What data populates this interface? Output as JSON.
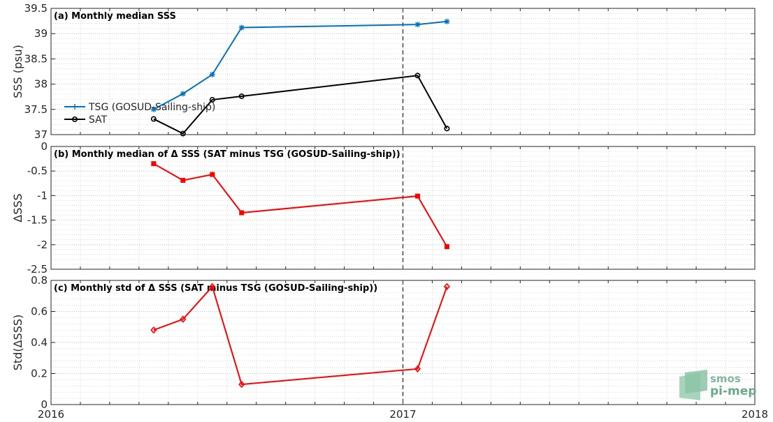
{
  "colors": {
    "tsg": "#0072bd",
    "sat": "#000000",
    "delta": "#ff0000",
    "grid": "#c8c8c8",
    "axis": "#262626"
  },
  "xaxis": {
    "tick_labels": [
      "2016",
      "2017",
      "2018"
    ]
  },
  "logo": {
    "line1": "smos",
    "line2": "pi-mep"
  },
  "chart_data": [
    {
      "type": "line",
      "title": "(a) Monthly median SSS",
      "ylabel": "SSS (psu)",
      "ylim": [
        37,
        39.5
      ],
      "yticks": [
        37,
        37.5,
        38,
        38.5,
        39,
        39.5
      ],
      "ytick_labels": [
        "37",
        "37.5",
        "38",
        "38.5",
        "39",
        "39.5"
      ],
      "x": [
        "2016-04",
        "2016-05",
        "2016-06",
        "2016-07",
        "2017-01",
        "2017-02"
      ],
      "series": [
        {
          "name": "TSG (GOSUD-Sailing-ship)",
          "color": "#0072bd",
          "marker": "star",
          "values": [
            37.5,
            37.81,
            38.19,
            39.12,
            39.18,
            39.24
          ]
        },
        {
          "name": "SAT",
          "color": "#000000",
          "marker": "circle",
          "values": [
            37.31,
            37.02,
            37.69,
            37.76,
            38.17,
            37.12
          ]
        }
      ],
      "legend": "left",
      "grid": true
    },
    {
      "type": "line",
      "title": "(b) Monthly median of Δ SSS (SAT minus TSG (GOSUD-Sailing-ship))",
      "ylabel": "ΔSSS",
      "ylim": [
        -2.5,
        0
      ],
      "yticks": [
        -2.5,
        -2,
        -1.5,
        -1,
        -0.5,
        0
      ],
      "ytick_labels": [
        "-2.5",
        "-2",
        "-1.5",
        "-1",
        "-0.5",
        "0"
      ],
      "x": [
        "2016-04",
        "2016-05",
        "2016-06",
        "2016-07",
        "2017-01",
        "2017-02"
      ],
      "series": [
        {
          "color": "#ff0000",
          "marker": "square",
          "values": [
            -0.35,
            -0.69,
            -0.57,
            -1.35,
            -1.01,
            -2.04
          ]
        }
      ],
      "grid": true
    },
    {
      "type": "line",
      "title": "(c) Monthly std of Δ SSS (SAT minus TSG (GOSUD-Sailing-ship))",
      "ylabel": "Std(ΔSSS)",
      "ylim": [
        0,
        0.8
      ],
      "yticks": [
        0,
        0.2,
        0.4,
        0.6,
        0.8
      ],
      "ytick_labels": [
        "0",
        "0.2",
        "0.4",
        "0.6",
        "0.8"
      ],
      "x": [
        "2016-04",
        "2016-05",
        "2016-06",
        "2016-07",
        "2017-01",
        "2017-02"
      ],
      "series": [
        {
          "color": "#ff0000",
          "marker": "diamond",
          "values": [
            0.48,
            0.55,
            0.76,
            0.13,
            0.23,
            0.76
          ]
        }
      ],
      "grid": true
    }
  ],
  "xlim": [
    "2016-01",
    "2018-01"
  ],
  "vline": "2017-01"
}
